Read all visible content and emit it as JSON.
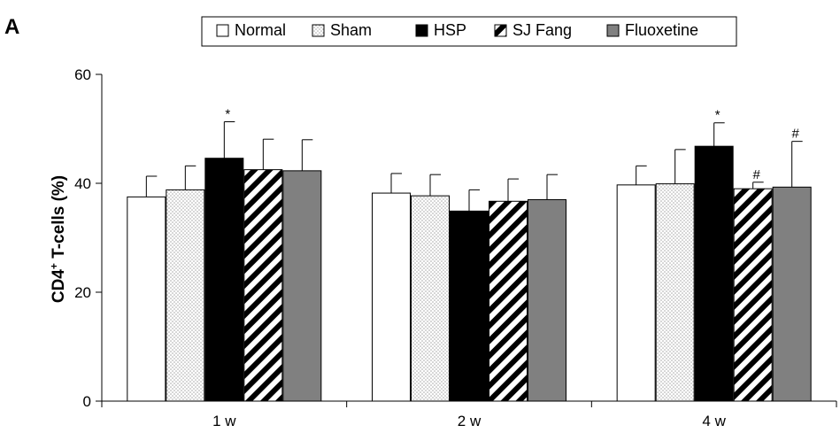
{
  "panel_label": "A",
  "colors": {
    "normal": "#ffffff",
    "sham_dots": "#a8a8a8",
    "hsp": "#000000",
    "fluoxetine": "#808080",
    "stroke": "#000000"
  },
  "chart_data": {
    "type": "bar",
    "title": "",
    "xlabel": "",
    "ylabel_main": "CD4",
    "ylabel_sup": "+",
    "ylabel_rest": " T-cells (%)",
    "ylim": [
      0,
      60
    ],
    "yticks": [
      "0",
      "20",
      "40",
      "60"
    ],
    "grid": false,
    "legend_position": "top-center",
    "categories": [
      "1 w",
      "2 w",
      "4 w"
    ],
    "series": [
      {
        "name": "Normal",
        "pattern": "white",
        "values": [
          37.5,
          38.2,
          39.7
        ],
        "errors": [
          3.8,
          3.6,
          3.5
        ]
      },
      {
        "name": "Sham",
        "pattern": "dots",
        "values": [
          38.8,
          37.7,
          39.9
        ],
        "errors": [
          4.4,
          3.9,
          6.3
        ]
      },
      {
        "name": "HSP",
        "pattern": "black",
        "values": [
          44.6,
          34.9,
          46.8
        ],
        "errors": [
          6.7,
          3.9,
          4.3
        ]
      },
      {
        "name": "SJ Fang",
        "pattern": "hatch",
        "values": [
          42.5,
          36.7,
          39.0
        ],
        "errors": [
          5.6,
          4.1,
          1.2
        ]
      },
      {
        "name": "Fluoxetine",
        "pattern": "gray",
        "values": [
          42.3,
          37.0,
          39.3
        ],
        "errors": [
          5.7,
          4.6,
          8.4
        ]
      }
    ],
    "annotations": [
      {
        "category": 0,
        "series": 2,
        "text": "*"
      },
      {
        "category": 2,
        "series": 2,
        "text": "*"
      },
      {
        "category": 2,
        "series": 3,
        "text": "#"
      },
      {
        "category": 2,
        "series": 4,
        "text": "#"
      }
    ]
  }
}
